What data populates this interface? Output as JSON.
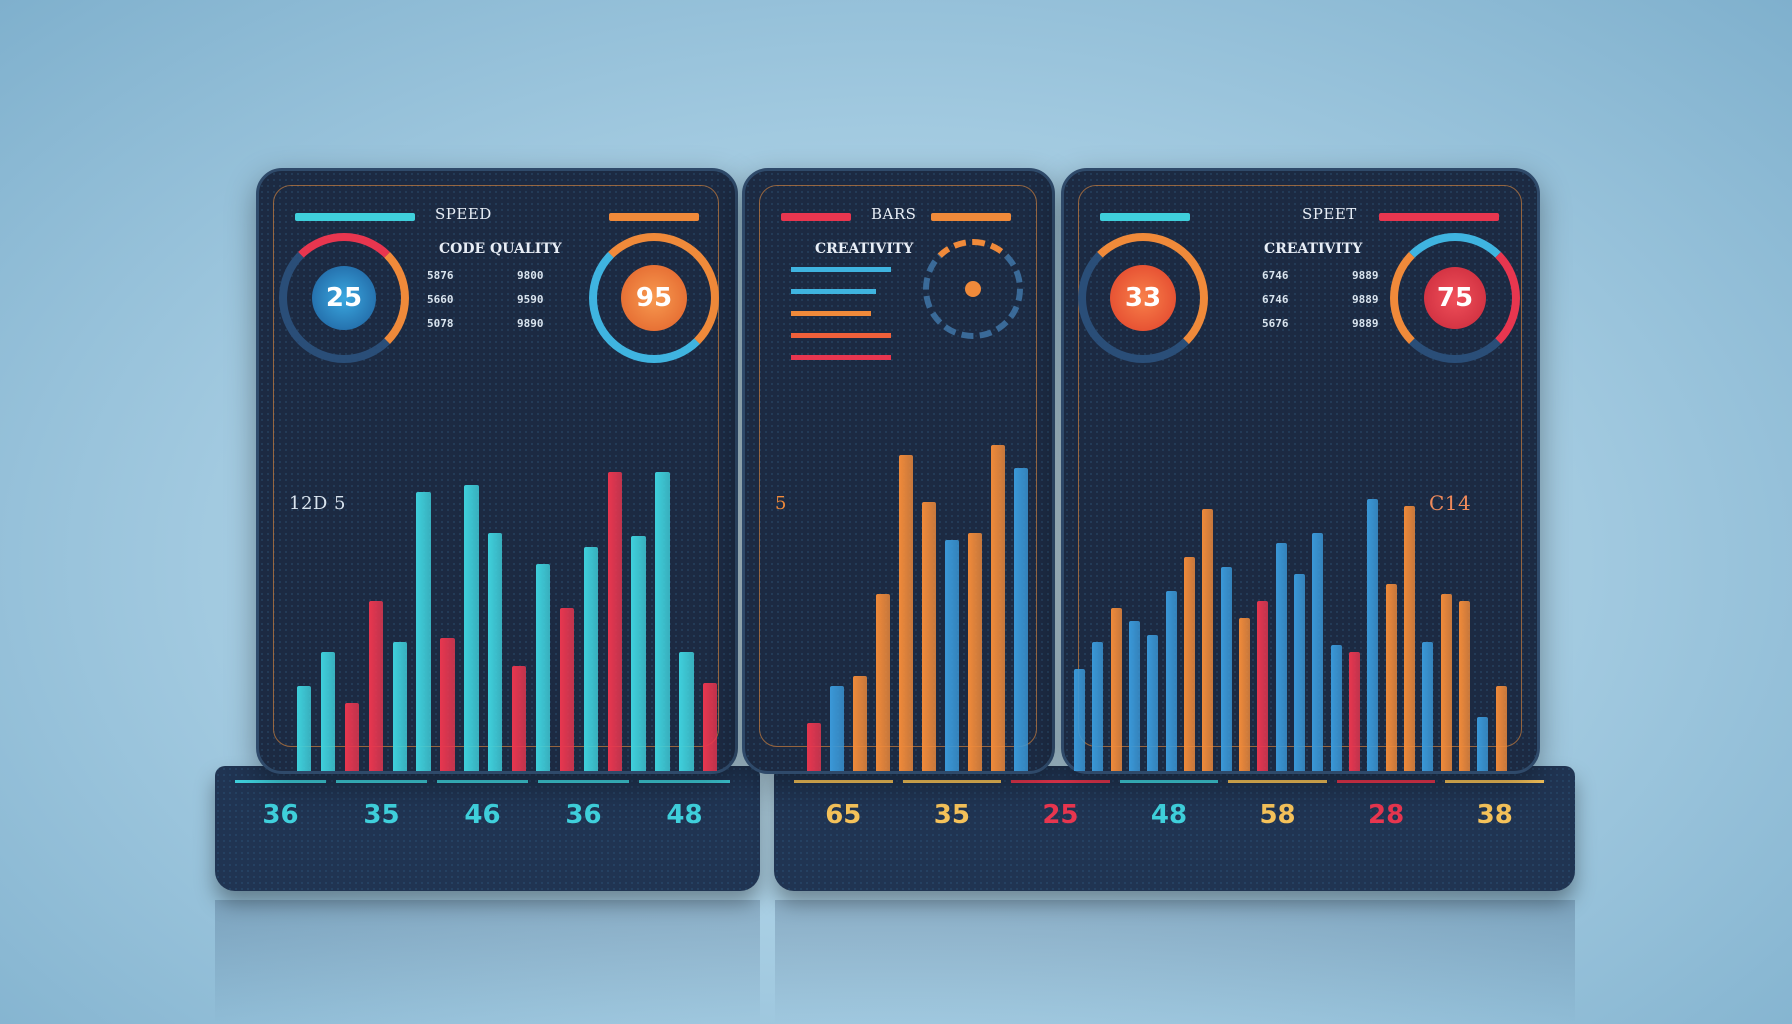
{
  "colors": {
    "cyan": "#3fd0dc",
    "red": "#e8364f",
    "orange": "#f08a3a",
    "blue": "#3a98d8",
    "yellow": "#f5c25a",
    "panel": "#1c2a42"
  },
  "left_panel": {
    "header": "SPEED",
    "subtitle": "CODE QUALITY",
    "rows": [
      [
        "5876",
        "9800"
      ],
      [
        "5660",
        "9590"
      ],
      [
        "5078",
        "9890"
      ]
    ],
    "gauge_left": {
      "value": "25"
    },
    "gauge_right": {
      "value": "95"
    },
    "side_label": "12D 5",
    "bars": [
      {
        "v": 25,
        "c": "cyan"
      },
      {
        "v": 35,
        "c": "cyan"
      },
      {
        "v": 20,
        "c": "red"
      },
      {
        "v": 50,
        "c": "red"
      },
      {
        "v": 38,
        "c": "cyan"
      },
      {
        "v": 82,
        "c": "cyan"
      },
      {
        "v": 39,
        "c": "red"
      },
      {
        "v": 84,
        "c": "cyan"
      },
      {
        "v": 70,
        "c": "cyan"
      },
      {
        "v": 31,
        "c": "red"
      },
      {
        "v": 61,
        "c": "cyan"
      },
      {
        "v": 48,
        "c": "red"
      },
      {
        "v": 66,
        "c": "cyan"
      },
      {
        "v": 88,
        "c": "red"
      },
      {
        "v": 69,
        "c": "cyan"
      },
      {
        "v": 88,
        "c": "cyan"
      },
      {
        "v": 35,
        "c": "cyan"
      },
      {
        "v": 26,
        "c": "red"
      }
    ]
  },
  "middle_panel": {
    "header": "BARS",
    "subtitle": "CREATIVITY",
    "side_number": "5",
    "bars": [
      {
        "v": 14,
        "c": "red"
      },
      {
        "v": 25,
        "c": "blue"
      },
      {
        "v": 28,
        "c": "orange"
      },
      {
        "v": 52,
        "c": "orange"
      },
      {
        "v": 93,
        "c": "orange"
      },
      {
        "v": 79,
        "c": "orange"
      },
      {
        "v": 68,
        "c": "blue"
      },
      {
        "v": 70,
        "c": "orange"
      },
      {
        "v": 96,
        "c": "orange"
      },
      {
        "v": 89,
        "c": "blue"
      }
    ]
  },
  "right_panel": {
    "header": "SPEET",
    "subtitle": "CREATIVITY",
    "rows": [
      [
        "6746",
        "9889"
      ],
      [
        "6746",
        "9889"
      ],
      [
        "5676",
        "9889"
      ]
    ],
    "gauge_left": {
      "value": "33"
    },
    "gauge_right": {
      "value": "75"
    },
    "side_label": "C14",
    "bars": [
      {
        "v": 30,
        "c": "blue"
      },
      {
        "v": 38,
        "c": "blue"
      },
      {
        "v": 48,
        "c": "orange"
      },
      {
        "v": 44,
        "c": "blue"
      },
      {
        "v": 40,
        "c": "blue"
      },
      {
        "v": 53,
        "c": "blue"
      },
      {
        "v": 63,
        "c": "orange"
      },
      {
        "v": 77,
        "c": "orange"
      },
      {
        "v": 60,
        "c": "blue"
      },
      {
        "v": 45,
        "c": "orange"
      },
      {
        "v": 50,
        "c": "red"
      },
      {
        "v": 67,
        "c": "blue"
      },
      {
        "v": 58,
        "c": "blue"
      },
      {
        "v": 70,
        "c": "blue"
      },
      {
        "v": 37,
        "c": "blue"
      },
      {
        "v": 35,
        "c": "red"
      },
      {
        "v": 80,
        "c": "blue"
      },
      {
        "v": 55,
        "c": "orange"
      },
      {
        "v": 78,
        "c": "orange"
      },
      {
        "v": 38,
        "c": "blue"
      },
      {
        "v": 52,
        "c": "orange"
      },
      {
        "v": 50,
        "c": "orange"
      },
      {
        "v": 16,
        "c": "blue"
      },
      {
        "v": 25,
        "c": "orange"
      }
    ]
  },
  "base_left": {
    "values": [
      {
        "t": "36",
        "c": "cyan"
      },
      {
        "t": "35",
        "c": "cyan"
      },
      {
        "t": "46",
        "c": "cyan"
      },
      {
        "t": "36",
        "c": "cyan"
      },
      {
        "t": "48",
        "c": "cyan"
      }
    ]
  },
  "base_right": {
    "values": [
      {
        "t": "65",
        "c": "yellow"
      },
      {
        "t": "35",
        "c": "yellow"
      },
      {
        "t": "25",
        "c": "red"
      },
      {
        "t": "48",
        "c": "cyan"
      },
      {
        "t": "58",
        "c": "yellow"
      },
      {
        "t": "28",
        "c": "red"
      },
      {
        "t": "38",
        "c": "yellow"
      }
    ]
  }
}
